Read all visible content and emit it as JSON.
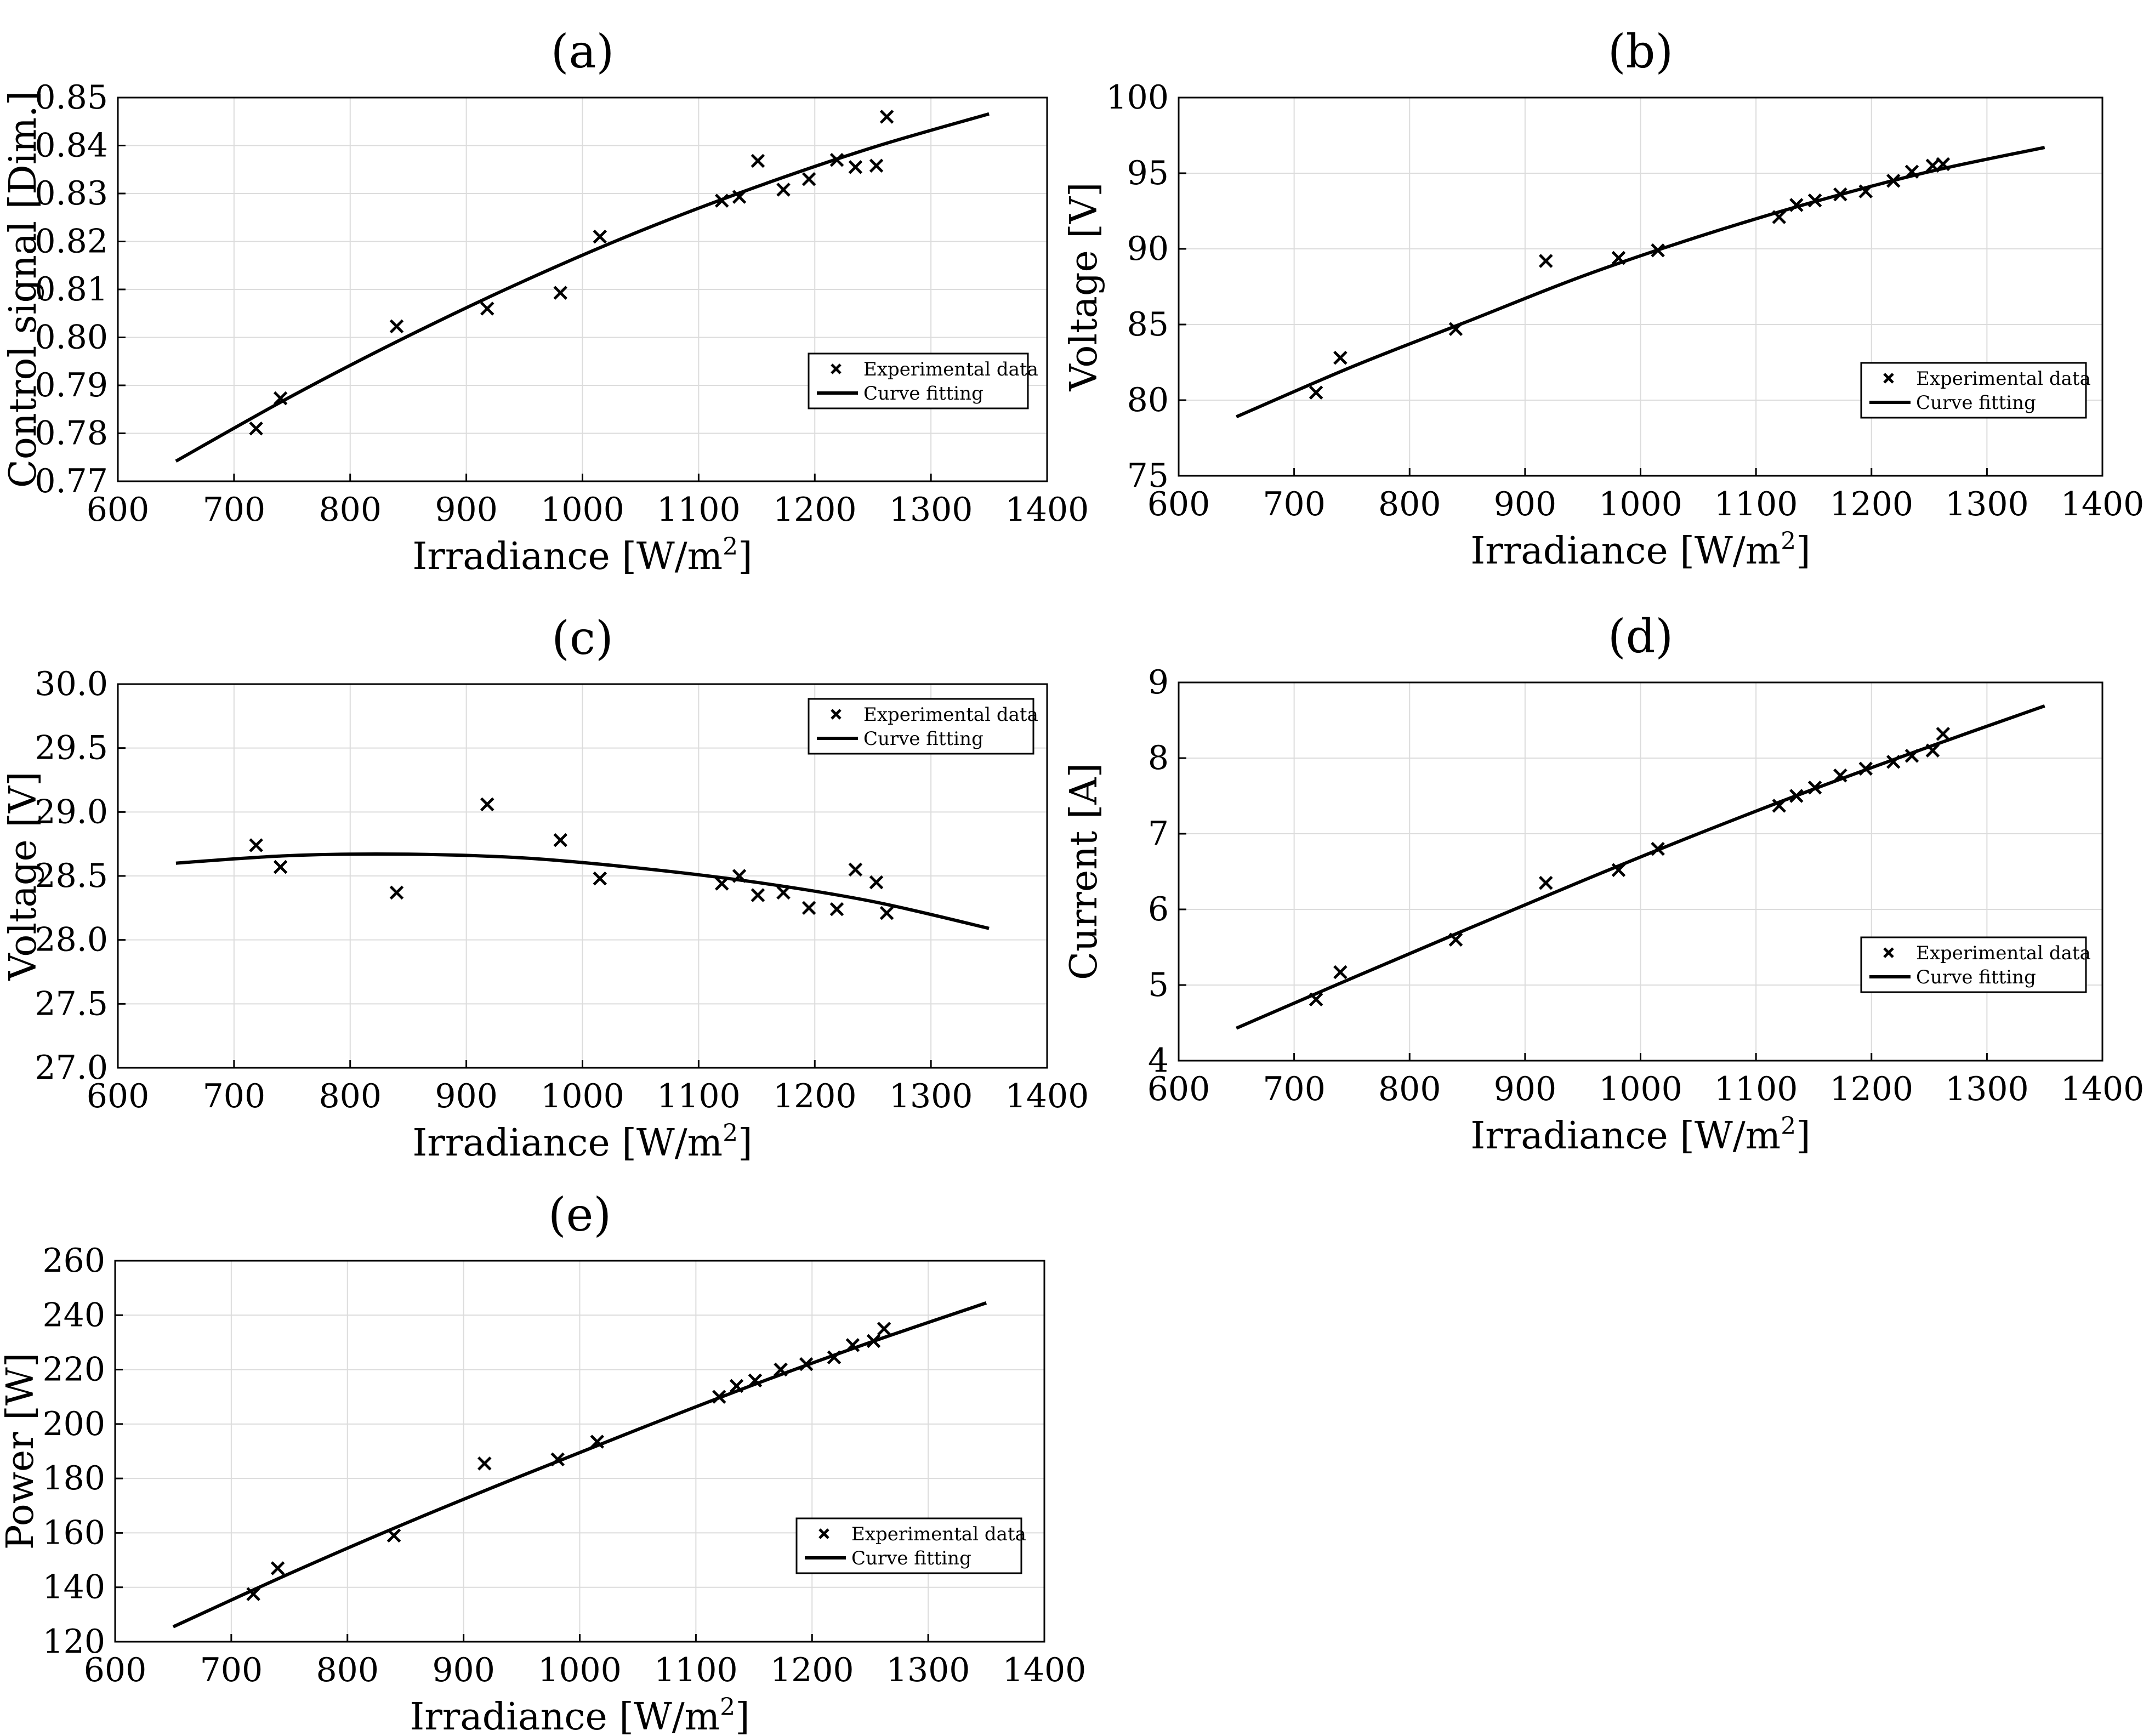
{
  "figure": {
    "legend": {
      "experimental": "Experimental data",
      "fit": "Curve fitting"
    }
  },
  "chart_data": [
    {
      "id": "a",
      "type": "scatter",
      "title": "(a)",
      "xlabel": "Irradiance [W/m",
      "xlabel_sup": "2",
      "xlabel_end": "]",
      "ylabel": "Control signal [Dim.]",
      "xlim": [
        600,
        1400
      ],
      "ylim": [
        0.77,
        0.85
      ],
      "xticks": [
        600,
        700,
        800,
        900,
        1000,
        1100,
        1200,
        1300,
        1400
      ],
      "xtick_labels": [
        "600",
        "700",
        "800",
        "900",
        "1000",
        "1100",
        "1200",
        "1300",
        "1400"
      ],
      "yticks": [
        0.77,
        0.78,
        0.79,
        0.8,
        0.81,
        0.82,
        0.83,
        0.84,
        0.85
      ],
      "ytick_labels": [
        "0.77",
        "0.78",
        "0.79",
        "0.80",
        "0.81",
        "0.82",
        "0.83",
        "0.84",
        "0.85"
      ],
      "grid": true,
      "legend_position": "right",
      "series": [
        {
          "name": "Experimental data",
          "kind": "markers",
          "x": [
            719,
            740,
            840,
            918,
            981,
            1015,
            1120,
            1135,
            1151,
            1173,
            1195,
            1219,
            1235,
            1253,
            1262
          ],
          "y": [
            0.781,
            0.7873,
            0.8023,
            0.806,
            0.8093,
            0.821,
            0.8285,
            0.8293,
            0.8368,
            0.8308,
            0.833,
            0.837,
            0.8355,
            0.8358,
            0.846
          ]
        },
        {
          "name": "Curve fitting",
          "kind": "line",
          "x": [
            650,
            750,
            850,
            950,
            1050,
            1150,
            1250,
            1350
          ],
          "y": [
            0.7742,
            0.7878,
            0.8003,
            0.8118,
            0.8222,
            0.8314,
            0.8396,
            0.8466
          ]
        }
      ]
    },
    {
      "id": "b",
      "type": "scatter",
      "title": "(b)",
      "xlabel": "Irradiance [W/m",
      "xlabel_sup": "2",
      "xlabel_end": "]",
      "ylabel": "Voltage [V]",
      "xlim": [
        600,
        1400
      ],
      "ylim": [
        75,
        100
      ],
      "xticks": [
        600,
        700,
        800,
        900,
        1000,
        1100,
        1200,
        1300,
        1400
      ],
      "xtick_labels": [
        "600",
        "700",
        "800",
        "900",
        "1000",
        "1100",
        "1200",
        "1300",
        "1400"
      ],
      "yticks": [
        75,
        80,
        85,
        90,
        95,
        100
      ],
      "ytick_labels": [
        "75",
        "80",
        "85",
        "90",
        "95",
        "100"
      ],
      "grid": true,
      "legend_position": "right",
      "series": [
        {
          "name": "Experimental data",
          "kind": "markers",
          "x": [
            719,
            740,
            840,
            918,
            981,
            1015,
            1120,
            1135,
            1151,
            1173,
            1195,
            1219,
            1235,
            1253,
            1262
          ],
          "y": [
            80.5,
            82.8,
            84.7,
            89.2,
            89.4,
            89.9,
            92.1,
            92.9,
            93.2,
            93.6,
            93.8,
            94.5,
            95.1,
            95.5,
            95.6
          ]
        },
        {
          "name": "Curve fitting",
          "kind": "line",
          "x": [
            650,
            750,
            850,
            950,
            1050,
            1150,
            1250,
            1350
          ],
          "y": [
            78.9,
            82.2,
            85.2,
            88.2,
            90.8,
            93.1,
            95.1,
            96.7
          ]
        }
      ]
    },
    {
      "id": "c",
      "type": "scatter",
      "title": "(c)",
      "xlabel": "Irradiance [W/m",
      "xlabel_sup": "2",
      "xlabel_end": "]",
      "ylabel": "Voltage [V]",
      "xlim": [
        600,
        1400
      ],
      "ylim": [
        27.0,
        30.0
      ],
      "xticks": [
        600,
        700,
        800,
        900,
        1000,
        1100,
        1200,
        1300,
        1400
      ],
      "xtick_labels": [
        "600",
        "700",
        "800",
        "900",
        "1000",
        "1100",
        "1200",
        "1300",
        "1400"
      ],
      "yticks": [
        27.0,
        27.5,
        28.0,
        28.5,
        29.0,
        29.5,
        30.0
      ],
      "ytick_labels": [
        "27.0",
        "27.5",
        "28.0",
        "28.5",
        "29.0",
        "29.5",
        "30.0"
      ],
      "grid": true,
      "legend_position": "top-right",
      "series": [
        {
          "name": "Experimental data",
          "kind": "markers",
          "x": [
            719,
            740,
            840,
            918,
            981,
            1015,
            1120,
            1135,
            1151,
            1173,
            1195,
            1219,
            1235,
            1253,
            1262
          ],
          "y": [
            28.74,
            28.57,
            28.37,
            29.06,
            28.78,
            28.48,
            28.44,
            28.5,
            28.35,
            28.37,
            28.25,
            28.24,
            28.55,
            28.45,
            28.21
          ]
        },
        {
          "name": "Curve fitting",
          "kind": "line",
          "x": [
            650,
            750,
            850,
            950,
            1050,
            1150,
            1250,
            1350
          ],
          "y": [
            28.6,
            28.66,
            28.67,
            28.64,
            28.56,
            28.45,
            28.3,
            28.09
          ]
        }
      ]
    },
    {
      "id": "d",
      "type": "scatter",
      "title": "(d)",
      "xlabel": "Irradiance [W/m",
      "xlabel_sup": "2",
      "xlabel_end": "]",
      "ylabel": "Current [A]",
      "xlim": [
        600,
        1400
      ],
      "ylim": [
        4,
        9
      ],
      "xticks": [
        600,
        700,
        800,
        900,
        1000,
        1100,
        1200,
        1300,
        1400
      ],
      "xtick_labels": [
        "600",
        "700",
        "800",
        "900",
        "1000",
        "1100",
        "1200",
        "1300",
        "1400"
      ],
      "yticks": [
        4,
        5,
        6,
        7,
        8,
        9
      ],
      "ytick_labels": [
        "4",
        "5",
        "6",
        "7",
        "8",
        "9"
      ],
      "grid": true,
      "legend_position": "right",
      "series": [
        {
          "name": "Experimental data",
          "kind": "markers",
          "x": [
            719,
            740,
            840,
            918,
            981,
            1015,
            1120,
            1135,
            1151,
            1173,
            1195,
            1219,
            1235,
            1253,
            1262
          ],
          "y": [
            4.81,
            5.17,
            5.6,
            6.35,
            6.52,
            6.8,
            7.37,
            7.5,
            7.61,
            7.77,
            7.86,
            7.95,
            8.03,
            8.1,
            8.32
          ]
        },
        {
          "name": "Curve fitting",
          "kind": "line",
          "x": [
            650,
            750,
            850,
            950,
            1050,
            1150,
            1250,
            1350
          ],
          "y": [
            4.43,
            5.09,
            5.74,
            6.38,
            7.0,
            7.59,
            8.15,
            8.69
          ]
        }
      ]
    },
    {
      "id": "e",
      "type": "scatter",
      "title": "(e)",
      "xlabel": "Irradiance [W/m",
      "xlabel_sup": "2",
      "xlabel_end": "]",
      "ylabel": "Power [W]",
      "xlim": [
        600,
        1400
      ],
      "ylim": [
        120,
        260
      ],
      "xticks": [
        600,
        700,
        800,
        900,
        1000,
        1100,
        1200,
        1300,
        1400
      ],
      "xtick_labels": [
        "600",
        "700",
        "800",
        "900",
        "1000",
        "1100",
        "1200",
        "1300",
        "1400"
      ],
      "yticks": [
        120,
        140,
        160,
        180,
        200,
        220,
        240,
        260
      ],
      "ytick_labels": [
        "120",
        "140",
        "160",
        "180",
        "200",
        "220",
        "240",
        "260"
      ],
      "grid": true,
      "legend_position": "right",
      "series": [
        {
          "name": "Experimental data",
          "kind": "markers",
          "x": [
            719,
            740,
            840,
            918,
            981,
            1015,
            1120,
            1135,
            1151,
            1173,
            1195,
            1219,
            1235,
            1253,
            1262
          ],
          "y": [
            137.5,
            147,
            159,
            185.5,
            187,
            193.5,
            210,
            214,
            216,
            220,
            222,
            224.5,
            229,
            230.5,
            235
          ]
        },
        {
          "name": "Curve fitting",
          "kind": "line",
          "x": [
            650,
            750,
            850,
            950,
            1050,
            1150,
            1250,
            1350
          ],
          "y": [
            125.5,
            145,
            163.5,
            181,
            198,
            214.5,
            230,
            244.5
          ]
        }
      ]
    }
  ]
}
